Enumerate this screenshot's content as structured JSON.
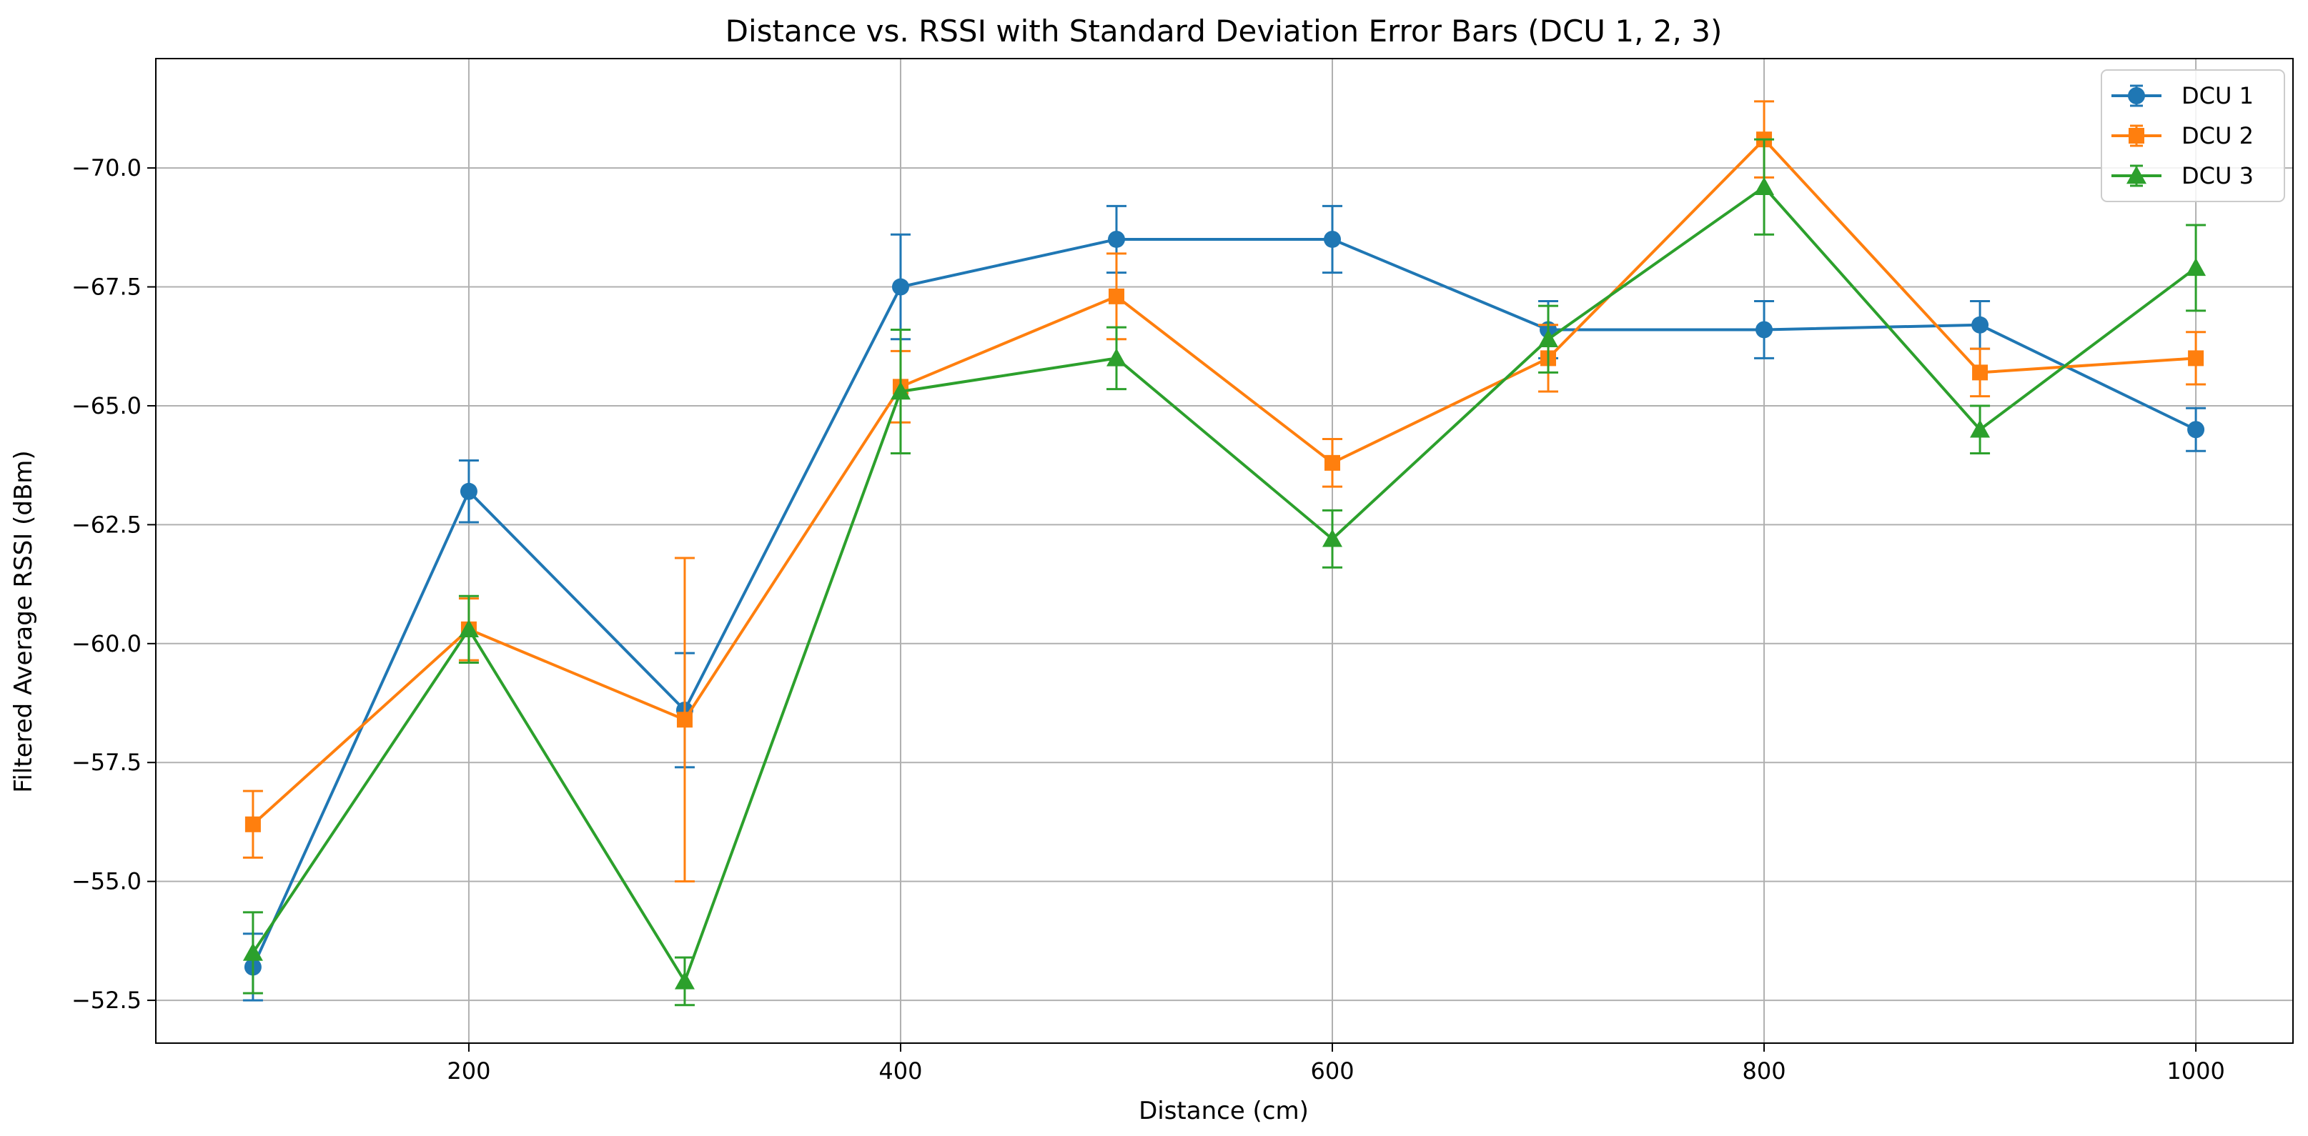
{
  "chart_data": {
    "type": "line",
    "title": "Distance vs. RSSI with Standard Deviation Error Bars (DCU 1, 2, 3)",
    "xlabel": "Distance (cm)",
    "ylabel": "Filtered Average RSSI (dBm)",
    "xlim": [
      55,
      1045
    ],
    "ylim": [
      -51.6,
      -72.3
    ],
    "y_inverted": true,
    "xticks": [
      200,
      400,
      600,
      800,
      1000
    ],
    "yticks": [
      -70.0,
      -67.5,
      -65.0,
      -62.5,
      -60.0,
      -57.5,
      -55.0,
      -52.5
    ],
    "ytick_labels": [
      "−70.0",
      "−67.5",
      "−65.0",
      "−62.5",
      "−60.0",
      "−57.5",
      "−55.0",
      "−52.5"
    ],
    "grid": true,
    "legend_position": "top-right",
    "x": [
      100,
      200,
      300,
      400,
      500,
      600,
      700,
      800,
      900,
      1000
    ],
    "series": [
      {
        "name": "DCU 1",
        "color": "#1f77b4",
        "marker": "circle",
        "values": [
          -53.2,
          -63.2,
          -58.6,
          -67.5,
          -68.5,
          -68.5,
          -66.6,
          -66.6,
          -66.7,
          -64.5
        ],
        "errors": [
          0.7,
          0.65,
          1.2,
          1.1,
          0.7,
          0.7,
          0.6,
          0.6,
          0.5,
          0.45
        ]
      },
      {
        "name": "DCU 2",
        "color": "#ff7f0e",
        "marker": "square",
        "values": [
          -56.2,
          -60.3,
          -58.4,
          -65.4,
          -67.3,
          -63.8,
          -66.0,
          -70.6,
          -65.7,
          -66.0
        ],
        "errors": [
          0.7,
          0.65,
          3.4,
          0.75,
          0.9,
          0.5,
          0.7,
          0.8,
          0.5,
          0.55
        ]
      },
      {
        "name": "DCU 3",
        "color": "#2ca02c",
        "marker": "triangle",
        "values": [
          -53.5,
          -60.3,
          -52.9,
          -65.3,
          -66.0,
          -62.2,
          -66.4,
          -69.6,
          -64.5,
          -67.9
        ],
        "errors": [
          0.85,
          0.7,
          0.5,
          1.3,
          0.65,
          0.6,
          0.7,
          1.0,
          0.5,
          0.9
        ]
      }
    ]
  }
}
